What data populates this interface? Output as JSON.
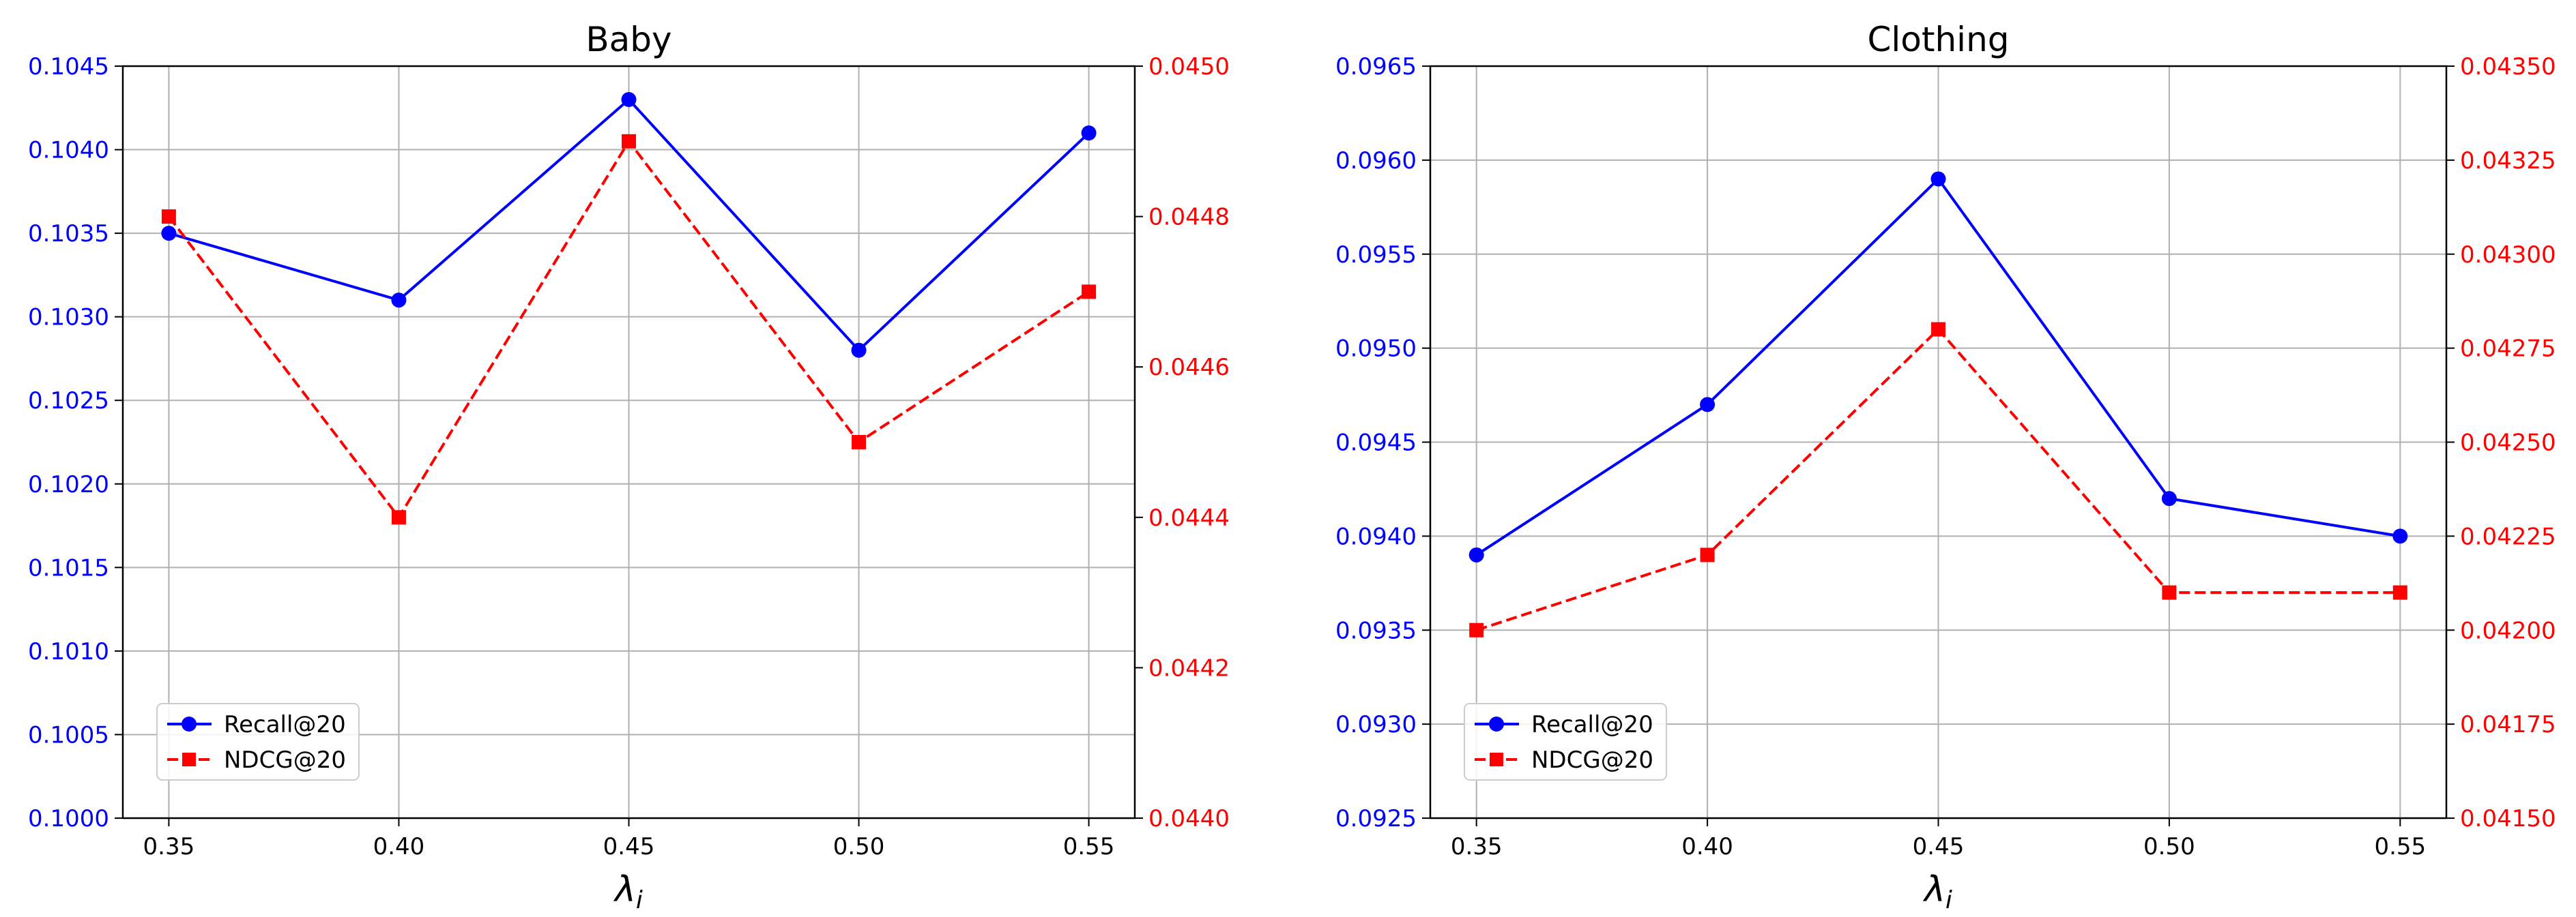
{
  "chart_data": [
    {
      "type": "line",
      "title": "Baby",
      "xlabel": "λ",
      "xlabel_subscript": "i",
      "x": [
        0.35,
        0.4,
        0.45,
        0.5,
        0.55
      ],
      "x_tick_labels": [
        "0.35",
        "0.40",
        "0.45",
        "0.50",
        "0.55"
      ],
      "xlim": [
        0.34,
        0.56
      ],
      "grid": true,
      "legend_position": "lower-left",
      "series": [
        {
          "name": "Recall@20",
          "axis": "left",
          "color": "#0000ff",
          "linestyle": "solid",
          "marker": "circle",
          "values": [
            0.1035,
            0.1031,
            0.1043,
            0.1028,
            0.1041
          ]
        },
        {
          "name": "NDCG@20",
          "axis": "right",
          "color": "#ff0000",
          "linestyle": "dashed",
          "marker": "square",
          "values": [
            0.0448,
            0.0444,
            0.0449,
            0.0445,
            0.0447
          ]
        }
      ],
      "y_left": {
        "lim": [
          0.1,
          0.1045
        ],
        "ticks": [
          0.1,
          0.1005,
          0.101,
          0.1015,
          0.102,
          0.1025,
          0.103,
          0.1035,
          0.104,
          0.1045
        ],
        "tick_labels": [
          "0.1000",
          "0.1005",
          "0.1010",
          "0.1015",
          "0.1020",
          "0.1025",
          "0.1030",
          "0.1035",
          "0.1040",
          "0.1045"
        ],
        "color": "#0000ff"
      },
      "y_right": {
        "lim": [
          0.044,
          0.045
        ],
        "ticks": [
          0.044,
          0.0442,
          0.0444,
          0.0446,
          0.0448,
          0.045
        ],
        "tick_labels": [
          "0.0440",
          "0.0442",
          "0.0444",
          "0.0446",
          "0.0448",
          "0.0450"
        ],
        "color": "#ff0000"
      }
    },
    {
      "type": "line",
      "title": "Clothing",
      "xlabel": "λ",
      "xlabel_subscript": "i",
      "x": [
        0.35,
        0.4,
        0.45,
        0.5,
        0.55
      ],
      "x_tick_labels": [
        "0.35",
        "0.40",
        "0.45",
        "0.50",
        "0.55"
      ],
      "xlim": [
        0.34,
        0.56
      ],
      "grid": true,
      "legend_position": "lower-left",
      "series": [
        {
          "name": "Recall@20",
          "axis": "left",
          "color": "#0000ff",
          "linestyle": "solid",
          "marker": "circle",
          "values": [
            0.0939,
            0.0947,
            0.0959,
            0.0942,
            0.094
          ]
        },
        {
          "name": "NDCG@20",
          "axis": "right",
          "color": "#ff0000",
          "linestyle": "dashed",
          "marker": "square",
          "values": [
            0.042,
            0.0422,
            0.0428,
            0.0421,
            0.0421
          ]
        }
      ],
      "y_left": {
        "lim": [
          0.0925,
          0.0965
        ],
        "ticks": [
          0.0925,
          0.093,
          0.0935,
          0.094,
          0.0945,
          0.095,
          0.0955,
          0.096,
          0.0965
        ],
        "tick_labels": [
          "0.0925",
          "0.0930",
          "0.0935",
          "0.0940",
          "0.0945",
          "0.0950",
          "0.0955",
          "0.0960",
          "0.0965"
        ],
        "color": "#0000ff"
      },
      "y_right": {
        "lim": [
          0.0415,
          0.0435
        ],
        "ticks": [
          0.0415,
          0.04175,
          0.042,
          0.04225,
          0.0425,
          0.04275,
          0.043,
          0.04325,
          0.0435
        ],
        "tick_labels": [
          "0.04150",
          "0.04175",
          "0.04200",
          "0.04225",
          "0.04250",
          "0.04275",
          "0.04300",
          "0.04325",
          "0.04350"
        ],
        "color": "#ff0000"
      }
    }
  ]
}
